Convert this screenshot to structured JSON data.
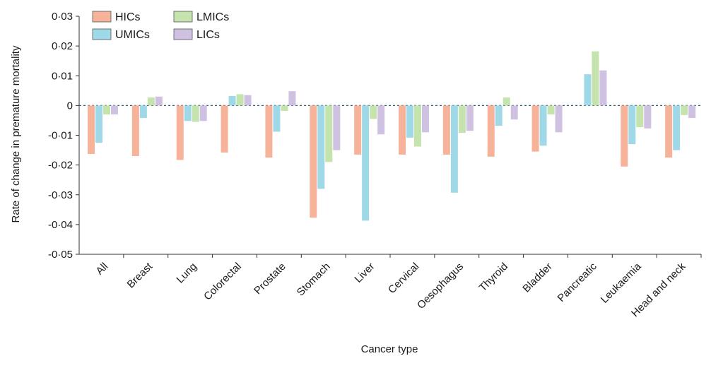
{
  "chart_data": {
    "type": "bar",
    "xlabel": "Cancer type",
    "ylabel": "Rate of change in premature mortality",
    "ylim": [
      -0.05,
      0.03
    ],
    "yticks": [
      0.03,
      0.02,
      0.01,
      0,
      -0.01,
      -0.02,
      -0.03,
      -0.04,
      -0.05
    ],
    "ytick_labels": [
      "0·03",
      "0·02",
      "0·01",
      "0",
      "-0·01",
      "-0·02",
      "-0·03",
      "-0·04",
      "-0·05"
    ],
    "zero_line": "dashed",
    "grid": false,
    "legend_position": "top-left",
    "categories": [
      "All",
      "Breast",
      "Lung",
      "Colorectal",
      "Prostate",
      "Stomach",
      "Liver",
      "Cervical",
      "Oesophagus",
      "Thyroid",
      "Bladder",
      "Pancreatic",
      "Leukaemia",
      "Head and neck"
    ],
    "series": [
      {
        "name": "HICs",
        "color": "#f7b29a",
        "values": [
          -0.0163,
          -0.017,
          -0.0183,
          -0.0158,
          -0.0175,
          -0.0377,
          -0.0165,
          -0.0165,
          -0.0165,
          -0.0172,
          -0.0155,
          0,
          -0.0205,
          -0.0175
        ]
      },
      {
        "name": "UMICs",
        "color": "#9fd8e6",
        "values": [
          -0.0125,
          -0.0042,
          -0.0052,
          0.0032,
          -0.0088,
          -0.028,
          -0.0387,
          -0.0108,
          -0.0293,
          -0.0068,
          -0.0135,
          0.0105,
          -0.013,
          -0.015
        ]
      },
      {
        "name": "LMICs",
        "color": "#c4e3ad",
        "values": [
          -0.003,
          0.0027,
          -0.0055,
          0.0038,
          -0.0018,
          -0.019,
          -0.0045,
          -0.0138,
          -0.0092,
          0.0027,
          -0.003,
          0.0182,
          -0.0073,
          -0.0032
        ]
      },
      {
        "name": "LICs",
        "color": "#cfc1e2",
        "values": [
          -0.003,
          0.003,
          -0.0052,
          0.0035,
          0.0048,
          -0.015,
          -0.0097,
          -0.009,
          -0.0085,
          -0.0047,
          -0.009,
          0.0118,
          -0.0077,
          -0.0042
        ]
      }
    ]
  }
}
